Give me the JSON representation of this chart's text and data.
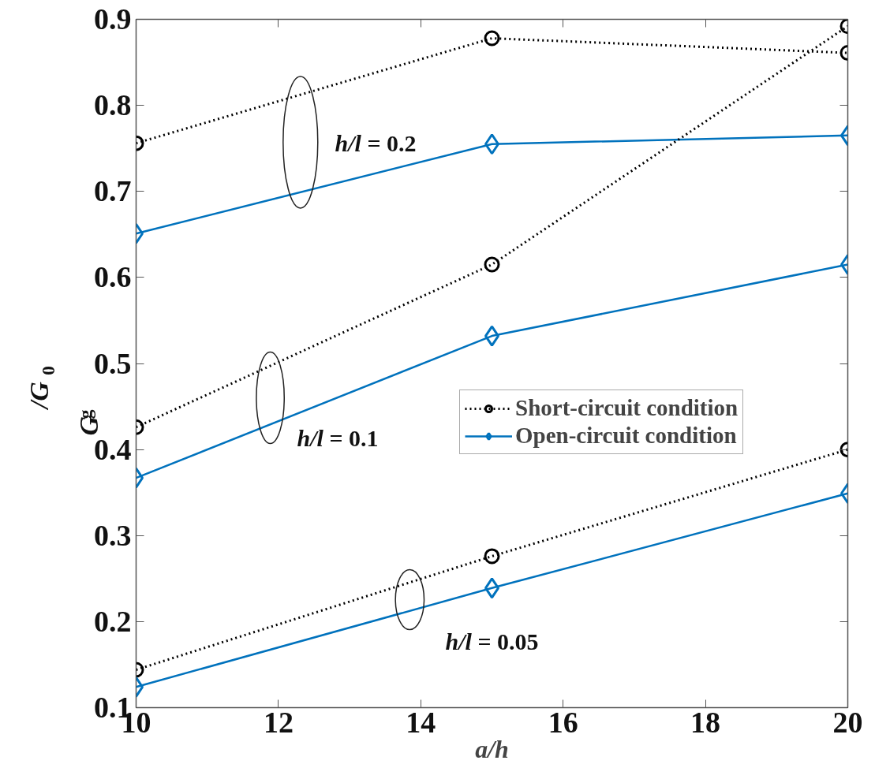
{
  "chart_data": {
    "type": "line",
    "xlabel": "a/h",
    "ylabel": "G$_{g}$/G$_{0}$",
    "x": [
      10,
      15,
      20
    ],
    "xlim": [
      10,
      20
    ],
    "xticks": [
      10,
      12,
      14,
      16,
      18,
      20
    ],
    "ylim": [
      0.1,
      0.9
    ],
    "yticks": [
      0.1,
      0.2,
      0.3,
      0.4,
      0.5,
      0.6,
      0.7,
      0.8,
      0.9
    ],
    "grid": false,
    "legend": "right",
    "series": [
      {
        "name": "Short-circuit condition",
        "color": "#000000",
        "marker": "circle",
        "line_style": "dotted",
        "values": [
          0.756,
          0.878,
          0.861
        ]
      },
      {
        "name": "Open-circuit condition",
        "color": "#0072bd",
        "marker": "diamond",
        "line_style": "solid",
        "values": [
          0.651,
          0.755,
          0.765
        ]
      },
      {
        "color": "#000000",
        "marker": "circle",
        "line_style": "dotted",
        "values": [
          0.426,
          0.615,
          0.892
        ]
      },
      {
        "color": "#0072bd",
        "marker": "diamond",
        "line_style": "solid",
        "values": [
          0.367,
          0.532,
          0.615
        ]
      },
      {
        "color": "#000000",
        "marker": "circle",
        "line_style": "dotted",
        "values": [
          0.144,
          0.276,
          0.4
        ]
      },
      {
        "color": "#0072bd",
        "marker": "diamond",
        "line_style": "solid",
        "values": [
          0.124,
          0.239,
          0.349
        ]
      }
    ],
    "annotations": [
      "h/l = 0.2",
      "h/l = 0.1",
      "h/l = 0.05"
    ]
  }
}
